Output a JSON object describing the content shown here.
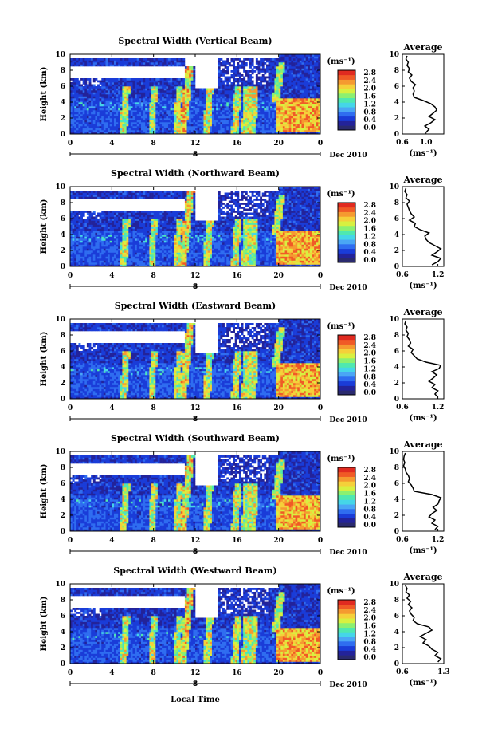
{
  "colorbar": {
    "unit_label": "(ms⁻¹)",
    "ticks": [
      "0.0",
      "0.4",
      "0.8",
      "1.2",
      "1.6",
      "2.0",
      "2.4",
      "2.8"
    ],
    "colors": [
      "#2a2a6e",
      "#23239a",
      "#1a3cd8",
      "#2f6df0",
      "#4aa6f5",
      "#45d6e8",
      "#4fe8b0",
      "#8cf070",
      "#d8f040",
      "#f5d03a",
      "#f59a30",
      "#f05a26",
      "#e02a20"
    ]
  },
  "x_axis": {
    "ticks": [
      "0",
      "4",
      "8",
      "12",
      "16",
      "20",
      "0"
    ],
    "date_label": "Dec 2010",
    "day_label": "8",
    "xlabel": "Local Time"
  },
  "y_axis": {
    "ylabel": "Height (km)",
    "ticks": [
      "0",
      "2",
      "4",
      "6",
      "8",
      "10"
    ]
  },
  "avg_label": "Average",
  "avg_xlabel": "(ms⁻¹)",
  "chart_data": [
    {
      "type": "heatmap",
      "title": "Spectral Width (Vertical Beam)",
      "xlim": [
        0,
        24
      ],
      "ylim": [
        0,
        10
      ],
      "profile": {
        "xticks": [
          "0.6",
          "1.0"
        ],
        "xlim": [
          0.6,
          1.3
        ],
        "heights": [
          0.2,
          0.6,
          1.0,
          1.4,
          1.8,
          2.2,
          2.6,
          3.0,
          3.4,
          3.8,
          4.2,
          4.6,
          5.0,
          5.4,
          5.8,
          6.2,
          6.6,
          7.0,
          7.4,
          7.8,
          8.2,
          8.6,
          9.0,
          9.4,
          9.8
        ],
        "values": [
          1.0,
          1.05,
          0.98,
          1.08,
          1.15,
          1.05,
          1.12,
          1.18,
          1.15,
          1.08,
          0.95,
          0.8,
          0.78,
          0.8,
          0.78,
          0.82,
          0.75,
          0.72,
          0.76,
          0.7,
          0.72,
          0.68,
          0.7,
          0.66,
          0.68
        ]
      }
    },
    {
      "type": "heatmap",
      "title": "Spectral Width (Northward Beam)",
      "xlim": [
        0,
        24
      ],
      "ylim": [
        0,
        10
      ],
      "profile": {
        "xticks": [
          "0.6",
          "1.2"
        ],
        "xlim": [
          0.6,
          1.3
        ],
        "heights": [
          0.2,
          0.6,
          1.0,
          1.4,
          1.8,
          2.2,
          2.6,
          3.0,
          3.4,
          3.8,
          4.2,
          4.6,
          5.0,
          5.4,
          5.8,
          6.2,
          6.6,
          7.0,
          7.4,
          7.8,
          8.2,
          8.6,
          9.0,
          9.4,
          9.8
        ],
        "values": [
          1.1,
          1.2,
          1.25,
          1.1,
          1.18,
          1.25,
          1.15,
          1.05,
          1.0,
          0.98,
          1.05,
          0.9,
          0.8,
          0.82,
          0.72,
          0.8,
          0.75,
          0.72,
          0.7,
          0.68,
          0.72,
          0.66,
          0.68,
          0.64,
          0.66
        ]
      }
    },
    {
      "type": "heatmap",
      "title": "Spectral Width (Eastward Beam)",
      "xlim": [
        0,
        24
      ],
      "ylim": [
        0,
        10
      ],
      "profile": {
        "xticks": [
          "0.6",
          "1.2"
        ],
        "xlim": [
          0.6,
          1.3
        ],
        "heights": [
          0.2,
          0.6,
          1.0,
          1.4,
          1.8,
          2.2,
          2.6,
          3.0,
          3.4,
          3.8,
          4.2,
          4.6,
          5.0,
          5.4,
          5.8,
          6.2,
          6.6,
          7.0,
          7.4,
          7.8,
          8.2,
          8.6,
          9.0,
          9.4,
          9.8
        ],
        "values": [
          1.2,
          1.15,
          1.2,
          1.1,
          1.15,
          1.05,
          1.12,
          1.18,
          1.1,
          1.22,
          1.25,
          1.0,
          0.85,
          0.8,
          0.75,
          0.78,
          0.7,
          0.74,
          0.72,
          0.68,
          0.7,
          0.66,
          0.68,
          0.64,
          0.66
        ]
      }
    },
    {
      "type": "heatmap",
      "title": "Spectral Width (Southward Beam)",
      "xlim": [
        0,
        24
      ],
      "ylim": [
        0,
        10
      ],
      "profile": {
        "xticks": [
          "0.6",
          "1.2"
        ],
        "xlim": [
          0.6,
          1.3
        ],
        "heights": [
          0.2,
          0.6,
          1.0,
          1.4,
          1.8,
          2.2,
          2.6,
          3.0,
          3.4,
          3.8,
          4.2,
          4.6,
          5.0,
          5.4,
          5.8,
          6.2,
          6.6,
          7.0,
          7.4,
          7.8,
          8.2,
          8.6,
          9.0,
          9.4,
          9.8
        ],
        "values": [
          1.15,
          1.2,
          1.1,
          1.15,
          1.05,
          1.1,
          1.18,
          1.12,
          1.2,
          1.22,
          1.25,
          1.1,
          0.8,
          0.78,
          0.75,
          0.7,
          0.72,
          0.7,
          0.66,
          0.65,
          0.62,
          0.64,
          0.62,
          0.63,
          0.65
        ]
      }
    },
    {
      "type": "heatmap",
      "title": "Spectral Width (Westward Beam)",
      "xlim": [
        0,
        24
      ],
      "ylim": [
        0,
        10
      ],
      "profile": {
        "xticks": [
          "0.6",
          "1.3"
        ],
        "xlim": [
          0.6,
          1.3
        ],
        "heights": [
          0.2,
          0.6,
          1.0,
          1.4,
          1.8,
          2.2,
          2.6,
          3.0,
          3.4,
          3.8,
          4.2,
          4.6,
          5.0,
          5.4,
          5.8,
          6.2,
          6.6,
          7.0,
          7.4,
          7.8,
          8.2,
          8.6,
          9.0,
          9.4,
          9.8
        ],
        "values": [
          1.2,
          1.25,
          1.15,
          1.2,
          1.1,
          1.05,
          0.95,
          1.0,
          0.9,
          1.0,
          1.1,
          1.05,
          0.85,
          0.78,
          0.8,
          0.75,
          0.72,
          0.76,
          0.7,
          0.74,
          0.68,
          0.72,
          0.66,
          0.68,
          0.65
        ]
      }
    }
  ]
}
